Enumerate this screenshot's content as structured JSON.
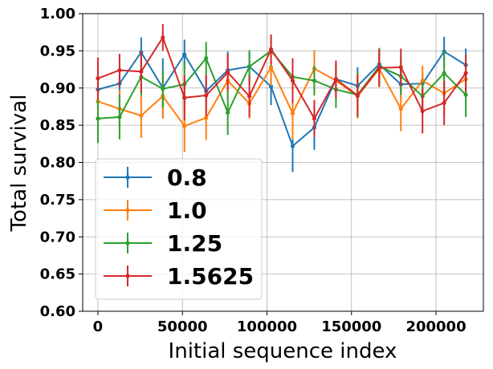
{
  "chart_data": {
    "type": "line",
    "title": "",
    "xlabel": "Initial sequence index",
    "ylabel": "Total survival",
    "xlim": [
      -9000,
      228000
    ],
    "ylim": [
      0.6,
      1.0
    ],
    "xticks": [
      0,
      50000,
      100000,
      150000,
      200000
    ],
    "yticks": [
      0.6,
      0.65,
      0.7,
      0.75,
      0.8,
      0.85,
      0.9,
      0.95,
      1.0
    ],
    "xtick_labels": [
      "0",
      "50000",
      "100000",
      "150000",
      "200000"
    ],
    "ytick_labels": [
      "0.60",
      "0.65",
      "0.70",
      "0.75",
      "0.80",
      "0.85",
      "0.90",
      "0.95",
      "1.00"
    ],
    "grid": true,
    "legend_position": "lower-left",
    "x": [
      0,
      12800,
      25600,
      38400,
      51200,
      64000,
      76800,
      89600,
      102400,
      115200,
      128000,
      140800,
      153600,
      166400,
      179200,
      192000,
      204800,
      217600
    ],
    "series": [
      {
        "name": "0.8",
        "color": "#1f77b4",
        "values": [
          0.898,
          0.906,
          0.948,
          0.9,
          0.945,
          0.896,
          0.924,
          0.929,
          0.902,
          0.822,
          0.847,
          0.912,
          0.903,
          0.932,
          0.905,
          0.906,
          0.949,
          0.931
        ],
        "errors": [
          0.025,
          0.02,
          0.02,
          0.04,
          0.02,
          0.02,
          0.025,
          0.02,
          0.025,
          0.035,
          0.03,
          0.02,
          0.025,
          0.02,
          0.02,
          0.015,
          0.02,
          0.022
        ]
      },
      {
        "name": "1.0",
        "color": "#ff7f0e",
        "values": [
          0.882,
          0.872,
          0.863,
          0.889,
          0.849,
          0.86,
          0.91,
          0.879,
          0.928,
          0.866,
          0.926,
          0.91,
          0.889,
          0.926,
          0.872,
          0.91,
          0.893,
          0.912
        ],
        "errors": [
          0.025,
          0.025,
          0.03,
          0.03,
          0.035,
          0.03,
          0.025,
          0.02,
          0.025,
          0.035,
          0.025,
          0.025,
          0.03,
          0.025,
          0.03,
          0.02,
          0.03,
          0.02
        ]
      },
      {
        "name": "1.25",
        "color": "#2ca02c",
        "values": [
          0.859,
          0.861,
          0.915,
          0.899,
          0.905,
          0.94,
          0.867,
          0.929,
          0.95,
          0.915,
          0.91,
          0.898,
          0.891,
          0.929,
          0.916,
          0.889,
          0.92,
          0.891
        ],
        "errors": [
          0.033,
          0.03,
          0.025,
          0.025,
          0.03,
          0.022,
          0.03,
          0.022,
          0.02,
          0.025,
          0.02,
          0.025,
          0.03,
          0.025,
          0.025,
          0.02,
          0.03,
          0.03
        ]
      },
      {
        "name": "1.5625",
        "color": "#d62728",
        "values": [
          0.913,
          0.924,
          0.922,
          0.968,
          0.887,
          0.89,
          0.921,
          0.889,
          0.952,
          0.91,
          0.859,
          0.912,
          0.89,
          0.927,
          0.928,
          0.869,
          0.88,
          0.92
        ],
        "errors": [
          0.028,
          0.022,
          0.028,
          0.018,
          0.03,
          0.028,
          0.025,
          0.028,
          0.02,
          0.03,
          0.025,
          0.025,
          0.028,
          0.025,
          0.025,
          0.03,
          0.03,
          0.025
        ]
      }
    ]
  }
}
